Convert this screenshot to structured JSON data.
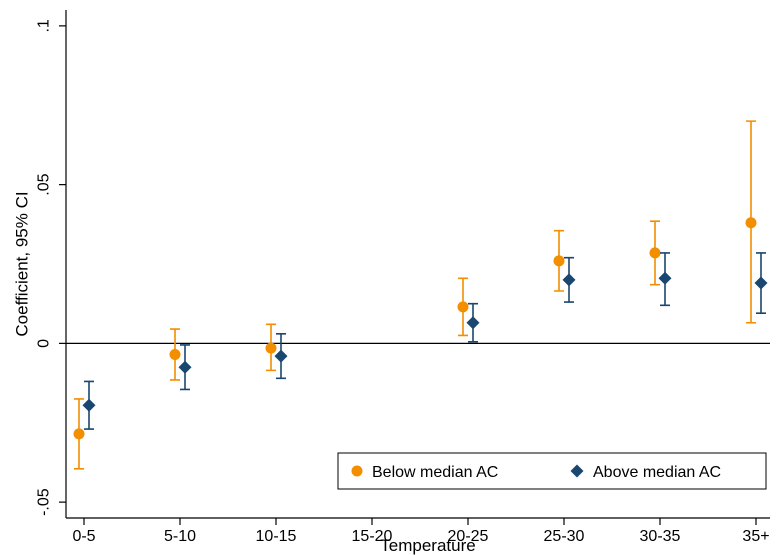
{
  "chart_data": {
    "type": "scatter",
    "xlabel": "Temperature",
    "ylabel": "Coefficient, 95% CI",
    "categories": [
      "0-5",
      "5-10",
      "10-15",
      "15-20",
      "20-25",
      "25-30",
      "30-35",
      "35+"
    ],
    "yticks": [
      {
        "value": -0.05,
        "label": "-.05"
      },
      {
        "value": 0,
        "label": "0"
      },
      {
        "value": 0.05,
        "label": ".05"
      },
      {
        "value": 0.1,
        "label": ".1"
      }
    ],
    "ylim": [
      -0.055,
      0.105
    ],
    "reference_line": 0,
    "series": [
      {
        "name": "Below median AC",
        "color": "#f28e00",
        "marker": "circle",
        "points": [
          {
            "category": "0-5",
            "coef": -0.0285,
            "ci_low": -0.0395,
            "ci_high": -0.0175
          },
          {
            "category": "5-10",
            "coef": -0.0035,
            "ci_low": -0.0115,
            "ci_high": 0.0045
          },
          {
            "category": "10-15",
            "coef": -0.0015,
            "ci_low": -0.0085,
            "ci_high": 0.006
          },
          {
            "category": "20-25",
            "coef": 0.0115,
            "ci_low": 0.0025,
            "ci_high": 0.0205
          },
          {
            "category": "25-30",
            "coef": 0.026,
            "ci_low": 0.0165,
            "ci_high": 0.0355
          },
          {
            "category": "30-35",
            "coef": 0.0285,
            "ci_low": 0.0185,
            "ci_high": 0.0385
          },
          {
            "category": "35+",
            "coef": 0.038,
            "ci_low": 0.0065,
            "ci_high": 0.07
          }
        ]
      },
      {
        "name": "Above median AC",
        "color": "#1a476f",
        "marker": "diamond",
        "points": [
          {
            "category": "0-5",
            "coef": -0.0195,
            "ci_low": -0.027,
            "ci_high": -0.012
          },
          {
            "category": "5-10",
            "coef": -0.0075,
            "ci_low": -0.0145,
            "ci_high": -0.0005
          },
          {
            "category": "10-15",
            "coef": -0.004,
            "ci_low": -0.011,
            "ci_high": 0.003
          },
          {
            "category": "20-25",
            "coef": 0.0065,
            "ci_low": 0.0005,
            "ci_high": 0.0125
          },
          {
            "category": "25-30",
            "coef": 0.02,
            "ci_low": 0.013,
            "ci_high": 0.027
          },
          {
            "category": "30-35",
            "coef": 0.0205,
            "ci_low": 0.012,
            "ci_high": 0.0285
          },
          {
            "category": "35+",
            "coef": 0.019,
            "ci_low": 0.0095,
            "ci_high": 0.0285
          }
        ]
      }
    ],
    "legend": {
      "position": "bottom-right",
      "entries": [
        "Below median AC",
        "Above median AC"
      ]
    },
    "grid": false
  }
}
